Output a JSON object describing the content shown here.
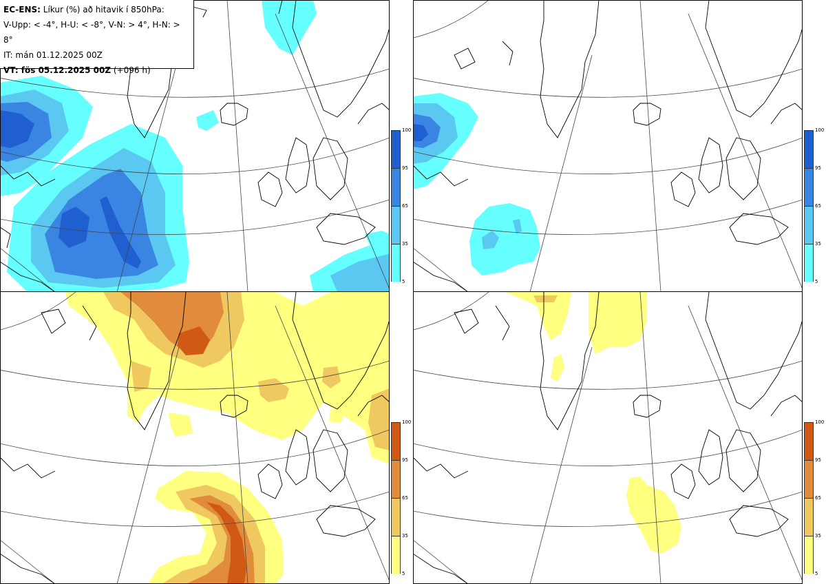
{
  "header": {
    "model_label": "EC-ENS:",
    "title_rest": " Líkur (%) að hitavik í 850hPa:",
    "thresholds": "V-Upp: < -4°, H-U: < -8°, V-N: > 4°, H-N: > 8°",
    "initial_time": "IT: mán 01.12.2025 00Z",
    "valid_label": "VT: fös 05.12.2025 00Z",
    "valid_step": " (+096 h)"
  },
  "colorbar": {
    "ticks": [
      "100",
      "95",
      "65",
      "35",
      "5"
    ],
    "cold_colors": [
      "#1f5fd0",
      "#3a84e2",
      "#5ac8f0",
      "#66ffff"
    ],
    "warm_colors": [
      "#d05a14",
      "#e08c3c",
      "#f0c860",
      "#ffff80"
    ]
  },
  "panels": [
    {
      "id": "cold-4",
      "quadrant": "top-left"
    },
    {
      "id": "cold-8",
      "quadrant": "top-right"
    },
    {
      "id": "warm-4",
      "quadrant": "bottom-left"
    },
    {
      "id": "warm-8",
      "quadrant": "bottom-right"
    }
  ]
}
